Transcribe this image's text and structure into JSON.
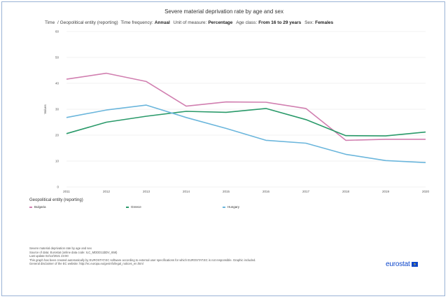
{
  "header": {
    "title": "Severe material deprivation rate by age and sex",
    "subtitle_parts": [
      {
        "key": "Time",
        "value": ""
      },
      {
        "key": "/  Geopolitical entity (reporting)",
        "value": ""
      },
      {
        "key": "Time frequency:",
        "value": "Annual"
      },
      {
        "key": "Unit of measure:",
        "value": "Percentage"
      },
      {
        "key": "Age class:",
        "value": "From 16 to 29 years"
      },
      {
        "key": "Sex:",
        "value": "Females"
      }
    ]
  },
  "legend": {
    "title": "Geopolitical entity (reporting)"
  },
  "footer": {
    "lines": [
      "Severe material deprivation rate by age and sex",
      "Source of data: Eurostat (online data code: ILC_MDDD11$DV_658)",
      "Last update 02/12/2021 23:00",
      "This graph has been created automatically by EUROSTAT.EC software according to external user specifications for which EUROSTAT.EC is not responsible. Graphic included.",
      "General disclaimer of the EC website: http://ec.europa.eu/geninfo/legal_notices_en.html"
    ]
  },
  "logo": {
    "text": "eurostat"
  },
  "colors": {
    "Bulgaria": "#d17fb0",
    "Greece": "#2a9a6a",
    "Hungary": "#6bb6dc",
    "grid": "#e6e6e6"
  },
  "chart_data": {
    "type": "line",
    "title": "Severe material deprivation rate by age and sex",
    "xlabel": "",
    "ylabel": "Values",
    "ylim": [
      0,
      60
    ],
    "yticks": [
      0,
      10,
      20,
      30,
      40,
      50,
      60
    ],
    "categories": [
      "2011",
      "2012",
      "2013",
      "2014",
      "2015",
      "2016",
      "2017",
      "2018",
      "2019",
      "2020"
    ],
    "series": [
      {
        "name": "Bulgaria",
        "values": [
          41.6,
          43.9,
          40.7,
          31.2,
          32.8,
          32.7,
          30.3,
          18.0,
          18.4,
          18.4
        ]
      },
      {
        "name": "Greece",
        "values": [
          20.6,
          25.0,
          27.3,
          29.2,
          28.8,
          30.3,
          26.0,
          19.8,
          19.7,
          21.2
        ]
      },
      {
        "name": "Hungary",
        "values": [
          26.8,
          29.7,
          31.6,
          26.8,
          22.6,
          18.0,
          16.9,
          12.6,
          10.2,
          9.4
        ]
      }
    ],
    "legend_position": "bottom-left"
  }
}
